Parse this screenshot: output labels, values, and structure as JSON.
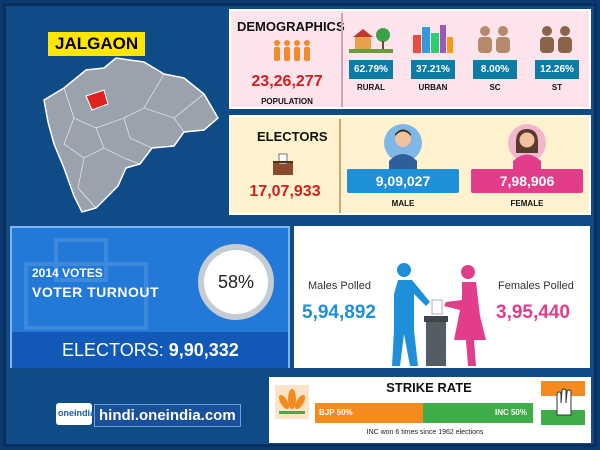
{
  "district": "JALGAON",
  "demographics": {
    "title": "DEMOGRAPHICS",
    "population": "23,26,277",
    "population_label": "POPULATION",
    "stats": [
      {
        "icon": "rural-icon",
        "pct": "62.79%",
        "label": "RURAL"
      },
      {
        "icon": "urban-icon",
        "pct": "37.21%",
        "label": "URBAN"
      },
      {
        "icon": "sc-people-icon",
        "pct": "8.00%",
        "label": "SC"
      },
      {
        "icon": "st-people-icon",
        "pct": "12.26%",
        "label": "ST"
      }
    ]
  },
  "electors": {
    "title": "ELECTORS",
    "total": "17,07,933",
    "male": {
      "value": "9,09,027",
      "label": "MALE",
      "color": "#1e8fd9"
    },
    "female": {
      "value": "7,98,906",
      "label": "FEMALE",
      "color": "#e23d8a"
    }
  },
  "turnout": {
    "line1": "2014 VOTES",
    "line2": "VOTER TURNOUT",
    "percent": "58%",
    "electors_label": "ELECTORS:",
    "electors_value": "9,90,332"
  },
  "polled": {
    "male_label": "Males Polled",
    "male_value": "5,94,892",
    "female_label": "Females Polled",
    "female_value": "3,95,440"
  },
  "strike_rate": {
    "title": "STRIKE RATE",
    "bjp": "BJP 50%",
    "inc": "INC 50%",
    "note": "INC won 6 times since 1962 elections",
    "bjp_color": "#f58b1f",
    "inc_color": "#3dac49"
  },
  "brand": {
    "logo": "oneindia",
    "site": "hindi.oneindia.com"
  }
}
